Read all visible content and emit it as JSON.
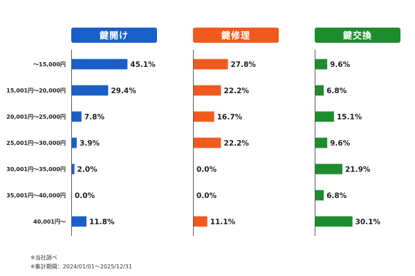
{
  "chart_data": {
    "type": "bar",
    "orientation": "horizontal",
    "title": "",
    "categories": [
      "～15,000円",
      "15,001円～20,000円",
      "20,001円～25,000円",
      "25,001円～30,000円",
      "30,001円～35,000円",
      "35,001円～40,000円",
      "40,001円～"
    ],
    "series": [
      {
        "name": "鍵開け",
        "color": "#1a5fc8",
        "values": [
          45.1,
          29.4,
          7.8,
          3.9,
          2.0,
          0.0,
          11.8
        ]
      },
      {
        "name": "鍵修理",
        "color": "#f05a1e",
        "values": [
          27.8,
          22.2,
          16.7,
          22.2,
          0.0,
          0.0,
          11.1
        ]
      },
      {
        "name": "鍵交換",
        "color": "#1e8c2e",
        "values": [
          9.6,
          6.8,
          15.1,
          9.6,
          21.9,
          6.8,
          30.1
        ]
      }
    ],
    "value_suffix": "%",
    "xlabel": "",
    "ylabel": ""
  },
  "footnotes": {
    "note1": "※当社調べ",
    "note2": "※集計期間：2024/01/01～2025/12/31"
  }
}
